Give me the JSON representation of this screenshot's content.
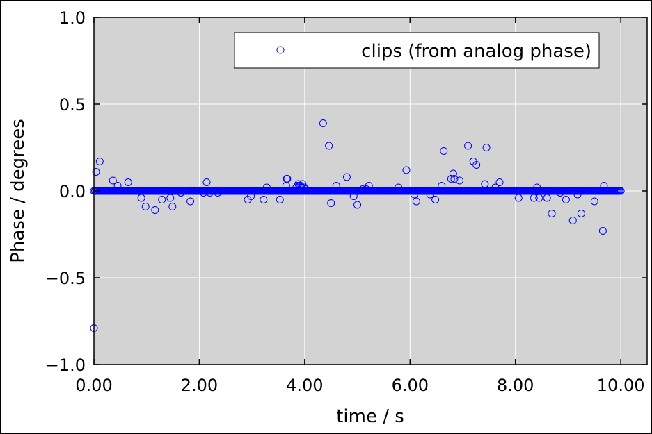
{
  "chart_data": {
    "type": "scatter",
    "xlabel": "time / s",
    "ylabel": "Phase / degrees",
    "xlim": [
      0,
      10.5
    ],
    "ylim": [
      -1.0,
      1.0
    ],
    "xticks": [
      0,
      2,
      4,
      6,
      8,
      10
    ],
    "xtick_labels": [
      "0.00",
      "2.00",
      "4.00",
      "6.00",
      "8.00",
      "10.00"
    ],
    "yticks": [
      -1.0,
      -0.5,
      0.0,
      0.5,
      1.0
    ],
    "ytick_labels": [
      "−1.0",
      "−0.5",
      "0.0",
      "0.5",
      "1.0"
    ],
    "grid": true,
    "background": "#d3d3d3",
    "marker_color": "#0000ff",
    "marker": "open-circle",
    "legend_position": "top-right",
    "series": [
      {
        "name": "clips (from analog phase)",
        "baseline": {
          "x_start": 0.0,
          "x_end": 10.0,
          "x_step": 0.02,
          "y": 0.0
        },
        "points": [
          [
            0.0,
            -0.79
          ],
          [
            0.04,
            0.11
          ],
          [
            0.11,
            0.17
          ],
          [
            0.36,
            0.06
          ],
          [
            0.45,
            0.03
          ],
          [
            0.65,
            0.05
          ],
          [
            0.9,
            -0.04
          ],
          [
            0.98,
            -0.09
          ],
          [
            1.16,
            -0.11
          ],
          [
            1.29,
            -0.05
          ],
          [
            1.45,
            -0.04
          ],
          [
            1.49,
            -0.09
          ],
          [
            1.65,
            -0.01
          ],
          [
            1.83,
            -0.06
          ],
          [
            2.08,
            -0.01
          ],
          [
            2.14,
            0.05
          ],
          [
            2.2,
            -0.01
          ],
          [
            2.35,
            -0.01
          ],
          [
            2.92,
            -0.05
          ],
          [
            2.98,
            -0.03
          ],
          [
            3.22,
            -0.05
          ],
          [
            3.28,
            0.02
          ],
          [
            3.53,
            -0.05
          ],
          [
            3.65,
            0.03
          ],
          [
            3.66,
            0.07
          ],
          [
            3.67,
            0.07
          ],
          [
            3.84,
            0.02
          ],
          [
            3.86,
            0.03
          ],
          [
            3.88,
            0.04
          ],
          [
            3.9,
            0.03
          ],
          [
            3.92,
            0.03
          ],
          [
            3.94,
            0.02
          ],
          [
            3.96,
            0.04
          ],
          [
            3.99,
            0.02
          ],
          [
            4.02,
            0.01
          ],
          [
            4.35,
            0.39
          ],
          [
            4.46,
            0.26
          ],
          [
            4.5,
            -0.07
          ],
          [
            4.6,
            0.03
          ],
          [
            4.8,
            0.08
          ],
          [
            4.93,
            -0.03
          ],
          [
            5.0,
            -0.08
          ],
          [
            5.1,
            0.01
          ],
          [
            5.17,
            0.01
          ],
          [
            5.22,
            0.03
          ],
          [
            5.54,
            0.0
          ],
          [
            5.78,
            0.02
          ],
          [
            5.93,
            0.12
          ],
          [
            6.08,
            -0.02
          ],
          [
            6.12,
            -0.06
          ],
          [
            6.38,
            -0.02
          ],
          [
            6.48,
            -0.05
          ],
          [
            6.6,
            0.03
          ],
          [
            6.64,
            0.23
          ],
          [
            6.78,
            0.07
          ],
          [
            6.82,
            0.1
          ],
          [
            6.84,
            0.07
          ],
          [
            6.94,
            0.06
          ],
          [
            7.1,
            0.26
          ],
          [
            7.2,
            0.17
          ],
          [
            7.26,
            0.15
          ],
          [
            7.42,
            0.04
          ],
          [
            7.45,
            0.25
          ],
          [
            7.62,
            0.02
          ],
          [
            7.7,
            0.05
          ],
          [
            8.06,
            -0.04
          ],
          [
            8.35,
            -0.04
          ],
          [
            8.41,
            0.02
          ],
          [
            8.45,
            -0.04
          ],
          [
            8.6,
            -0.04
          ],
          [
            8.69,
            -0.13
          ],
          [
            8.85,
            -0.01
          ],
          [
            8.96,
            -0.05
          ],
          [
            9.09,
            -0.17
          ],
          [
            9.18,
            -0.02
          ],
          [
            9.25,
            -0.13
          ],
          [
            9.5,
            -0.06
          ],
          [
            9.66,
            -0.23
          ],
          [
            9.68,
            0.03
          ]
        ]
      }
    ]
  }
}
